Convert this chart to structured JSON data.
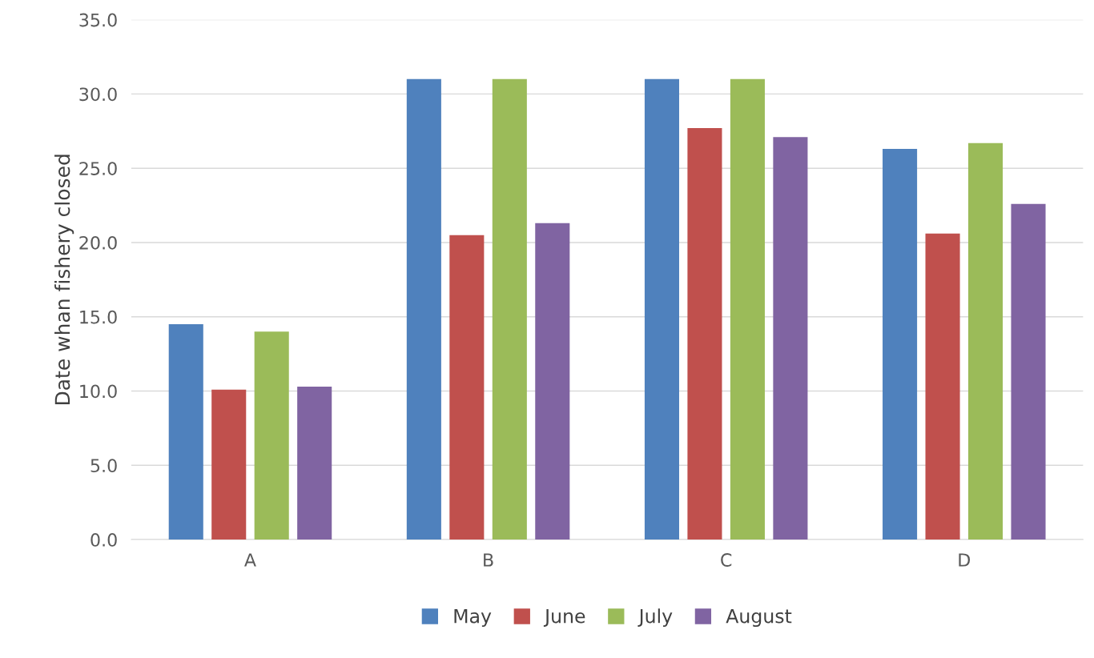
{
  "chart_data": {
    "type": "bar",
    "ylabel": "Date whan fishery closed",
    "categories": [
      "A",
      "B",
      "C",
      "D"
    ],
    "series": [
      {
        "name": "May",
        "color": "#4f81bd",
        "values": [
          14.5,
          31.0,
          31.0,
          26.3
        ]
      },
      {
        "name": "June",
        "color": "#c0504d",
        "values": [
          10.1,
          20.5,
          27.7,
          20.6
        ]
      },
      {
        "name": "July",
        "color": "#9bbb59",
        "values": [
          14.0,
          31.0,
          31.0,
          26.7
        ]
      },
      {
        "name": "August",
        "color": "#8064a2",
        "values": [
          10.3,
          21.3,
          27.1,
          22.6
        ]
      }
    ],
    "ylim": [
      0,
      35
    ],
    "yticks": [
      {
        "value": 0,
        "label": "0.0"
      },
      {
        "value": 5,
        "label": "5.0"
      },
      {
        "value": 10,
        "label": "10.0"
      },
      {
        "value": 15,
        "label": "15.0"
      },
      {
        "value": 20,
        "label": "20.0"
      },
      {
        "value": 25,
        "label": "25.0"
      },
      {
        "value": 30,
        "label": "30.0"
      },
      {
        "value": 35,
        "label": "35.0"
      }
    ],
    "grid": "y",
    "legend": "bottom"
  }
}
